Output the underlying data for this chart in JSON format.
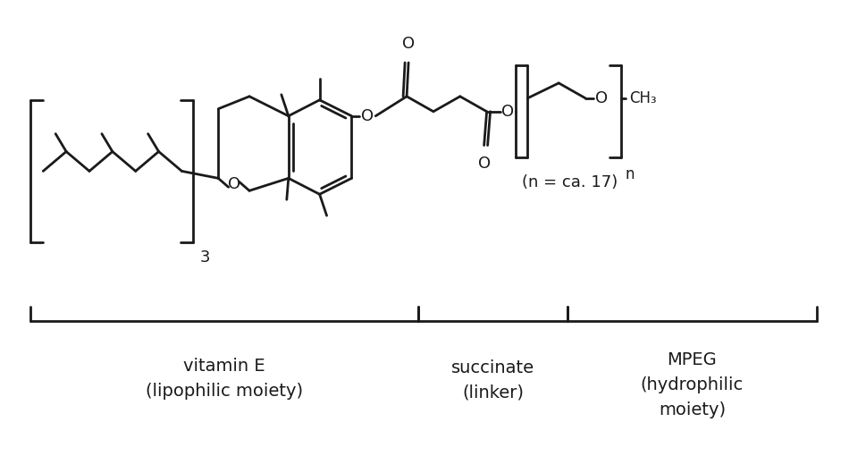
{
  "bg_color": "#ffffff",
  "line_color": "#1a1a1a",
  "line_width": 2.0,
  "font_family": "Arial",
  "label_vitE": "vitamin E\n(lipophilic moiety)",
  "label_succ": "succinate\n(linker)",
  "label_mpeg": "MPEG\n(hydrophilic\nmoiety)",
  "n_label": "(n = ca. 17)",
  "sub3": "3",
  "subn": "n",
  "O_label": "O",
  "CH3_label": "CH₃"
}
